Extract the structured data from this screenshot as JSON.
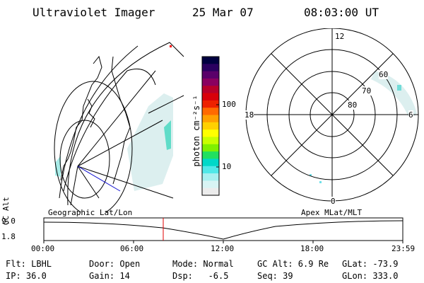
{
  "header": {
    "instrument": "Ultraviolet Imager",
    "date": "25 Mar 07",
    "time": "08:03:00 UT"
  },
  "panels": {
    "left_label": "Geographic Lat/Lon",
    "right_label": "Apex MLat/MLT"
  },
  "colorbar": {
    "label": "photon cm⁻²s⁻¹",
    "tick_100": "100",
    "tick_10": "10",
    "colors": [
      "#000040",
      "#2a0060",
      "#5a006a",
      "#8a0060",
      "#b8002a",
      "#d8000a",
      "#ee2200",
      "#ff6a00",
      "#ffa000",
      "#ffd000",
      "#ffff00",
      "#c8ff00",
      "#7ff000",
      "#22e060",
      "#00d8c8",
      "#50e8e8",
      "#a8f0f0",
      "#d8f4f4",
      "#ececec"
    ]
  },
  "polar": {
    "mlt_top": "12",
    "mlt_left": "18",
    "mlt_right": "6",
    "mlt_bottom": "0",
    "mlat_60": "60",
    "mlat_70": "70",
    "mlat_80": "80"
  },
  "altitude_plot": {
    "ylabel": "GC Alt",
    "y_top": "9.0",
    "y_bottom": "1.8",
    "x_ticks": [
      "00:00",
      "06:00",
      "12:00",
      "18:00",
      "23:59"
    ]
  },
  "info": {
    "flt": "Flt: LBHL",
    "ip": "IP: 36.0",
    "door": "Door: Open",
    "gain": "Gain: 14",
    "mode": "Mode: Normal",
    "dsp": "Dsp:   -6.5",
    "gcalt": "GC Alt: 6.9 Re",
    "seq": "Seq: 39",
    "glat": "GLat: -73.9",
    "glon": "GLon: 333.0"
  }
}
